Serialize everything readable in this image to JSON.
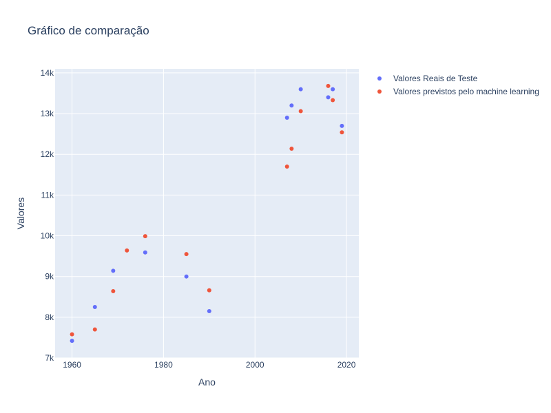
{
  "chart_data": {
    "type": "scatter",
    "title": "Gráfico de comparação",
    "xlabel": "Ano",
    "ylabel": "Valores",
    "xlim": [
      1956.3,
      2022.7
    ],
    "ylim": [
      7000,
      14100
    ],
    "x_ticks": [
      1960,
      1980,
      2000,
      2020
    ],
    "x_tick_labels": [
      "1960",
      "1980",
      "2000",
      "2020"
    ],
    "y_ticks": [
      7000,
      8000,
      9000,
      10000,
      11000,
      12000,
      13000,
      14000
    ],
    "y_tick_labels": [
      "7k",
      "8k",
      "9k",
      "10k",
      "11k",
      "12k",
      "13k",
      "14k"
    ],
    "grid": true,
    "legend_position": "top-right",
    "background": "#e5ecf6",
    "series": [
      {
        "name": "Valores Reais de Teste",
        "color": "#636efa",
        "points": [
          {
            "x": 1960,
            "y": 7420
          },
          {
            "x": 1965,
            "y": 8250
          },
          {
            "x": 1969,
            "y": 9140
          },
          {
            "x": 1976,
            "y": 9590
          },
          {
            "x": 1985,
            "y": 9000
          },
          {
            "x": 1990,
            "y": 8150
          },
          {
            "x": 2007,
            "y": 12900
          },
          {
            "x": 2008,
            "y": 13200
          },
          {
            "x": 2010,
            "y": 13600
          },
          {
            "x": 2016,
            "y": 13400
          },
          {
            "x": 2017,
            "y": 13600
          },
          {
            "x": 2019,
            "y": 12700
          }
        ]
      },
      {
        "name": "Valores previstos pelo machine learning",
        "color": "#ef553b",
        "points": [
          {
            "x": 1960,
            "y": 7580
          },
          {
            "x": 1965,
            "y": 7700
          },
          {
            "x": 1969,
            "y": 8640
          },
          {
            "x": 1972,
            "y": 9640
          },
          {
            "x": 1976,
            "y": 9990
          },
          {
            "x": 1985,
            "y": 9550
          },
          {
            "x": 1990,
            "y": 8660
          },
          {
            "x": 2007,
            "y": 11700
          },
          {
            "x": 2008,
            "y": 12140
          },
          {
            "x": 2010,
            "y": 13060
          },
          {
            "x": 2016,
            "y": 13680
          },
          {
            "x": 2017,
            "y": 13330
          },
          {
            "x": 2019,
            "y": 12540
          }
        ]
      }
    ]
  }
}
